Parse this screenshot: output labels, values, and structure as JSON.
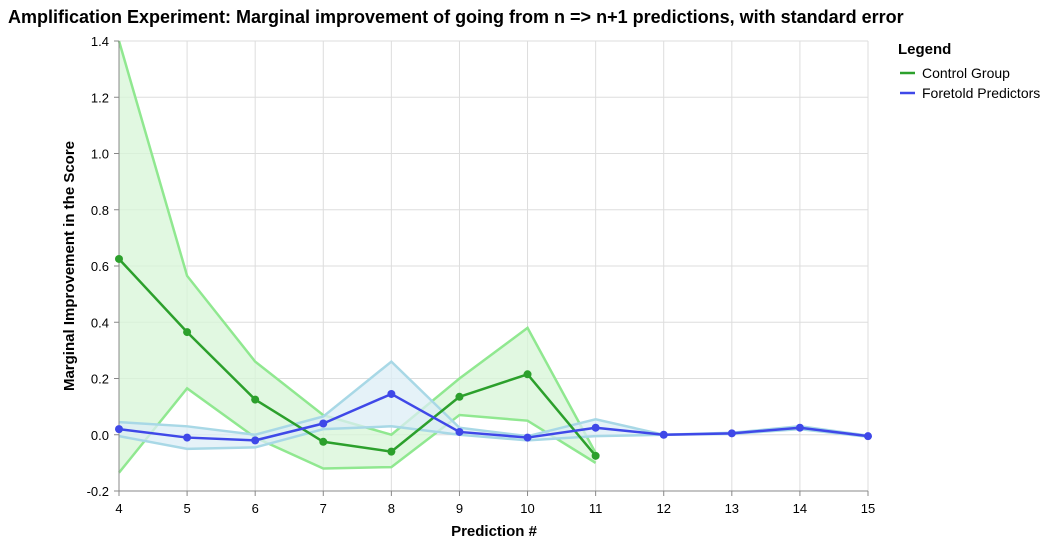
{
  "chart_data": {
    "type": "line",
    "title": "Amplification Experiment: Marginal improvement of going from n => n+1 predictions, with standard error",
    "xlabel": "Prediction #",
    "ylabel": "Marginal Improvement in the Score",
    "xlim": [
      4,
      15
    ],
    "ylim": [
      -0.2,
      1.4
    ],
    "x_ticks": [
      "4",
      "5",
      "6",
      "7",
      "8",
      "9",
      "10",
      "11",
      "12",
      "13",
      "14",
      "15"
    ],
    "y_ticks": [
      "-0.2",
      "0.0",
      "0.2",
      "0.4",
      "0.6",
      "0.8",
      "1.0",
      "1.2",
      "1.4"
    ],
    "grid": true,
    "legend": {
      "title": "Legend",
      "placement": "right",
      "entries": [
        "Control Group",
        "Foretold Predictors"
      ]
    },
    "series": [
      {
        "name": "Control Group",
        "color": "#2ca02c",
        "band_fill": "#d7f5d7",
        "band_stroke": "#90e890",
        "x": [
          4,
          5,
          6,
          7,
          8,
          9,
          10,
          11
        ],
        "values": [
          0.625,
          0.365,
          0.125,
          -0.025,
          -0.06,
          0.135,
          0.215,
          -0.075
        ],
        "upper": [
          1.4,
          0.565,
          0.26,
          0.07,
          0.0,
          0.2,
          0.38,
          -0.065
        ],
        "lower": [
          -0.135,
          0.165,
          -0.01,
          -0.12,
          -0.115,
          0.07,
          0.05,
          -0.1
        ]
      },
      {
        "name": "Foretold Predictors",
        "color": "#3f48e8",
        "band_fill": "#dcedf6",
        "band_stroke": "#a8d8e6",
        "x": [
          4,
          5,
          6,
          7,
          8,
          9,
          10,
          11,
          12,
          13,
          14,
          15
        ],
        "values": [
          0.02,
          -0.01,
          -0.02,
          0.04,
          0.145,
          0.01,
          -0.01,
          0.025,
          0.0,
          0.005,
          0.025,
          -0.005
        ],
        "upper": [
          0.045,
          0.03,
          0.0,
          0.065,
          0.26,
          0.025,
          -0.005,
          0.055,
          0.0,
          0.007,
          0.03,
          -0.003
        ],
        "lower": [
          -0.005,
          -0.05,
          -0.045,
          0.02,
          0.03,
          0.0,
          -0.02,
          -0.005,
          0.0,
          0.003,
          0.02,
          -0.007
        ]
      }
    ]
  }
}
